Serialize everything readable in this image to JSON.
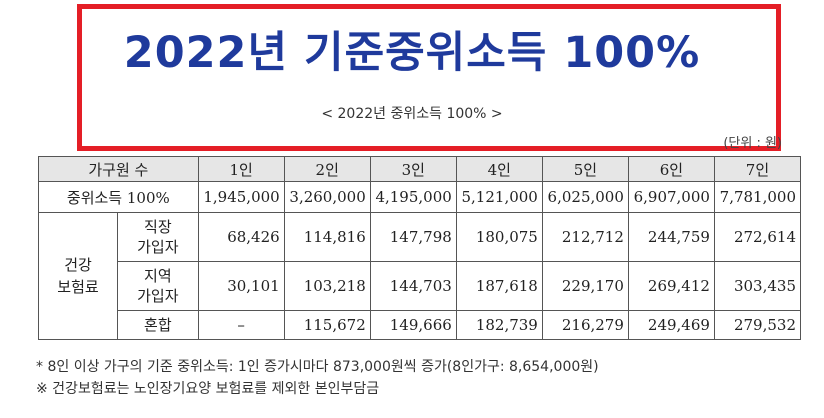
{
  "header": {
    "title": "2022년 기준중위소득 100%",
    "subtitle": "< 2022년 중위소득 100% >",
    "unit": "(단위 : 원)"
  },
  "table": {
    "head_label": "가구원 수",
    "columns": [
      "1인",
      "2인",
      "3인",
      "4인",
      "5인",
      "6인",
      "7인"
    ],
    "median_label": "중위소득 100%",
    "median_values": [
      "1,945,000",
      "3,260,000",
      "4,195,000",
      "5,121,000",
      "6,025,000",
      "6,907,000",
      "7,781,000"
    ],
    "insurance_label_1": "건강",
    "insurance_label_2": "보험료",
    "workplace_label_1": "직장",
    "workplace_label_2": "가입자",
    "workplace_values": [
      "68,426",
      "114,816",
      "147,798",
      "180,075",
      "212,712",
      "244,759",
      "272,614"
    ],
    "regional_label_1": "지역",
    "regional_label_2": "가입자",
    "regional_values": [
      "30,101",
      "103,218",
      "144,703",
      "187,618",
      "229,170",
      "269,412",
      "303,435"
    ],
    "mixed_label": "혼합",
    "mixed_values": [
      "–",
      "115,672",
      "149,666",
      "182,739",
      "216,279",
      "249,469",
      "279,532"
    ]
  },
  "notes": {
    "note1": "* 8인 이상 가구의 기준 중위소득: 1인 증가시마다 873,000원씩 증가(8인가구: 8,654,000원)",
    "note2": "※ 건강보험료는 노인장기요양 보험료를 제외한 본인부담금"
  },
  "colors": {
    "frame": "#e41e26",
    "title": "#1f3a9c"
  }
}
